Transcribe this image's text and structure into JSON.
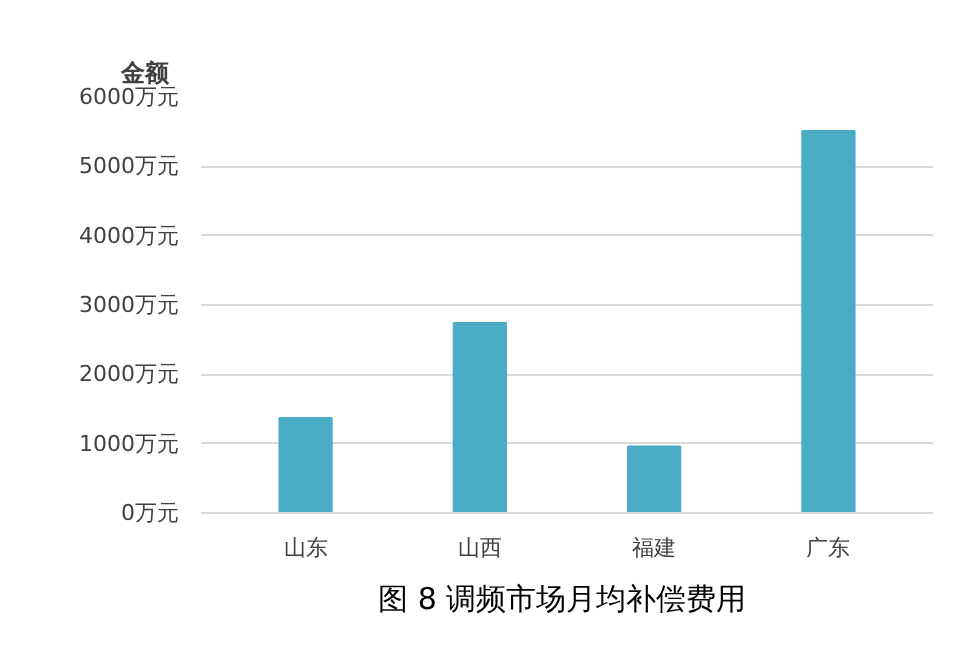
{
  "chart_data": {
    "type": "bar",
    "title": "图 8  调频市场月均补偿费用",
    "ylabel": "金额",
    "categories": [
      "山东",
      "山西",
      "福建",
      "广东"
    ],
    "values": [
      1370,
      2740,
      960,
      5510
    ],
    "color": "#4bacc6",
    "ylim": [
      0,
      6000
    ],
    "yticks": [
      {
        "value": 0,
        "label": "0万元"
      },
      {
        "value": 1000,
        "label": "1000万元"
      },
      {
        "value": 2000,
        "label": "2000万元"
      },
      {
        "value": 3000,
        "label": "3000万元"
      },
      {
        "value": 4000,
        "label": "4000万元"
      },
      {
        "value": 5000,
        "label": "5000万元"
      },
      {
        "value": 6000,
        "label": "6000万元"
      }
    ],
    "grid": "y"
  }
}
